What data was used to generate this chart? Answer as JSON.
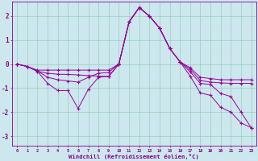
{
  "xlabel": "Windchill (Refroidissement éolien,°C)",
  "background_color": "#cce8ee",
  "grid_color": "#99ccbb",
  "line_color": "#990099",
  "text_color": "#880088",
  "x_values": [
    0,
    1,
    2,
    3,
    4,
    5,
    6,
    7,
    8,
    9,
    10,
    11,
    12,
    13,
    14,
    15,
    16,
    17,
    18,
    19,
    20,
    21,
    22,
    23
  ],
  "ylim": [
    -3.4,
    2.6
  ],
  "xlim": [
    -0.5,
    23.5
  ],
  "yticks": [
    -3,
    -2,
    -1,
    0,
    1,
    2
  ],
  "lines": [
    [
      0.0,
      -0.1,
      -0.25,
      -0.25,
      -0.25,
      -0.25,
      -0.25,
      -0.25,
      -0.25,
      -0.25,
      0.0,
      1.75,
      2.35,
      2.0,
      1.5,
      0.65,
      0.1,
      -0.15,
      -0.55,
      -0.6,
      -0.65,
      -0.65,
      -0.65,
      -0.65
    ],
    [
      0.0,
      -0.1,
      -0.3,
      -0.38,
      -0.42,
      -0.43,
      -0.45,
      -0.48,
      -0.5,
      -0.52,
      0.0,
      1.75,
      2.35,
      2.0,
      1.5,
      0.65,
      0.1,
      -0.22,
      -0.68,
      -0.75,
      -0.78,
      -0.8,
      -0.8,
      -0.8
    ],
    [
      0.0,
      -0.1,
      -0.3,
      -0.8,
      -1.1,
      -1.1,
      -1.85,
      -1.05,
      -0.55,
      -0.5,
      0.0,
      1.75,
      2.35,
      2.0,
      1.5,
      0.65,
      0.1,
      -0.5,
      -1.2,
      -1.3,
      -1.8,
      -2.0,
      -2.45,
      -2.65
    ],
    [
      0.0,
      -0.1,
      -0.28,
      -0.55,
      -0.65,
      -0.7,
      -0.75,
      -0.55,
      -0.38,
      -0.35,
      0.02,
      1.77,
      2.37,
      2.0,
      1.5,
      0.65,
      0.1,
      -0.32,
      -0.8,
      -0.85,
      -1.22,
      -1.35,
      -2.0,
      -2.65
    ]
  ]
}
